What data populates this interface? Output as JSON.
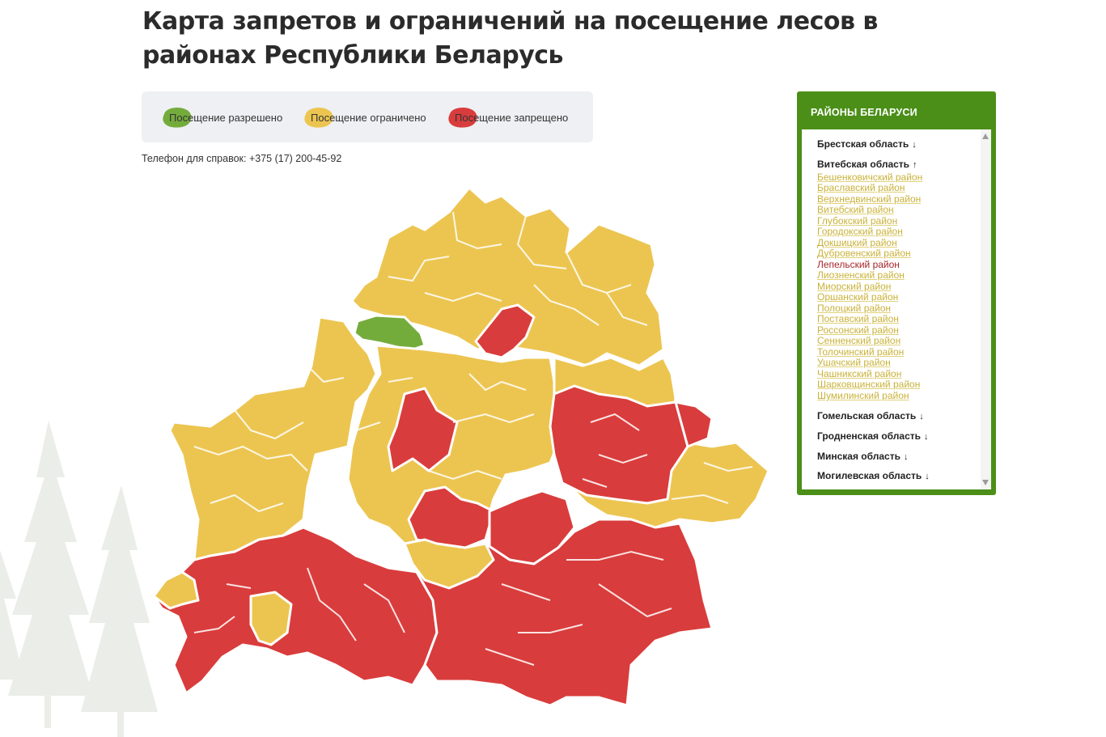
{
  "page": {
    "title": "Карта запретов и ограничений на посещение лесов в районах Республики Беларусь"
  },
  "legend": [
    {
      "label": "Посещение разрешено",
      "color": "#74ac3c"
    },
    {
      "label": "Посещение ограничено",
      "color": "#ecc551"
    },
    {
      "label": "Посещение запрещено",
      "color": "#d93c3c"
    }
  ],
  "phone": {
    "label": "Телефон для справок:",
    "number": "+375 (17) 200-45-92"
  },
  "sidebar": {
    "title": "РАЙОНЫ БЕЛАРУСИ",
    "regions": [
      {
        "name": "Брестская область",
        "arrow": "↓"
      },
      {
        "name": "Витебская область",
        "arrow": "↑"
      },
      {
        "name": "Гомельская область",
        "arrow": "↓"
      },
      {
        "name": "Гродненская область",
        "arrow": "↓"
      },
      {
        "name": "Минская область",
        "arrow": "↓"
      },
      {
        "name": "Могилевская область",
        "arrow": "↓"
      }
    ],
    "vitebsk_districts": [
      {
        "name": "Бешенковичский район",
        "status": "restricted"
      },
      {
        "name": "Браславский район",
        "status": "restricted"
      },
      {
        "name": "Верхнедвинский район",
        "status": "restricted"
      },
      {
        "name": "Витебский район",
        "status": "restricted"
      },
      {
        "name": "Глубокский район",
        "status": "restricted"
      },
      {
        "name": "Городокский район",
        "status": "restricted"
      },
      {
        "name": "Докшицкий район",
        "status": "restricted"
      },
      {
        "name": "Дубровенский район",
        "status": "restricted"
      },
      {
        "name": "Лепельский район",
        "status": "prohibited"
      },
      {
        "name": "Лиозненский район",
        "status": "restricted"
      },
      {
        "name": "Миорский район",
        "status": "restricted"
      },
      {
        "name": "Оршанский район",
        "status": "restricted"
      },
      {
        "name": "Полоцкий район",
        "status": "restricted"
      },
      {
        "name": "Поставский район",
        "status": "restricted"
      },
      {
        "name": "Россонский район",
        "status": "restricted"
      },
      {
        "name": "Сенненский район",
        "status": "restricted"
      },
      {
        "name": "Толочинский район",
        "status": "restricted"
      },
      {
        "name": "Ушачский район",
        "status": "restricted"
      },
      {
        "name": "Чашникский район",
        "status": "restricted"
      },
      {
        "name": "Шарковщинский район",
        "status": "restricted"
      },
      {
        "name": "Шумилинский район",
        "status": "restricted"
      }
    ]
  }
}
